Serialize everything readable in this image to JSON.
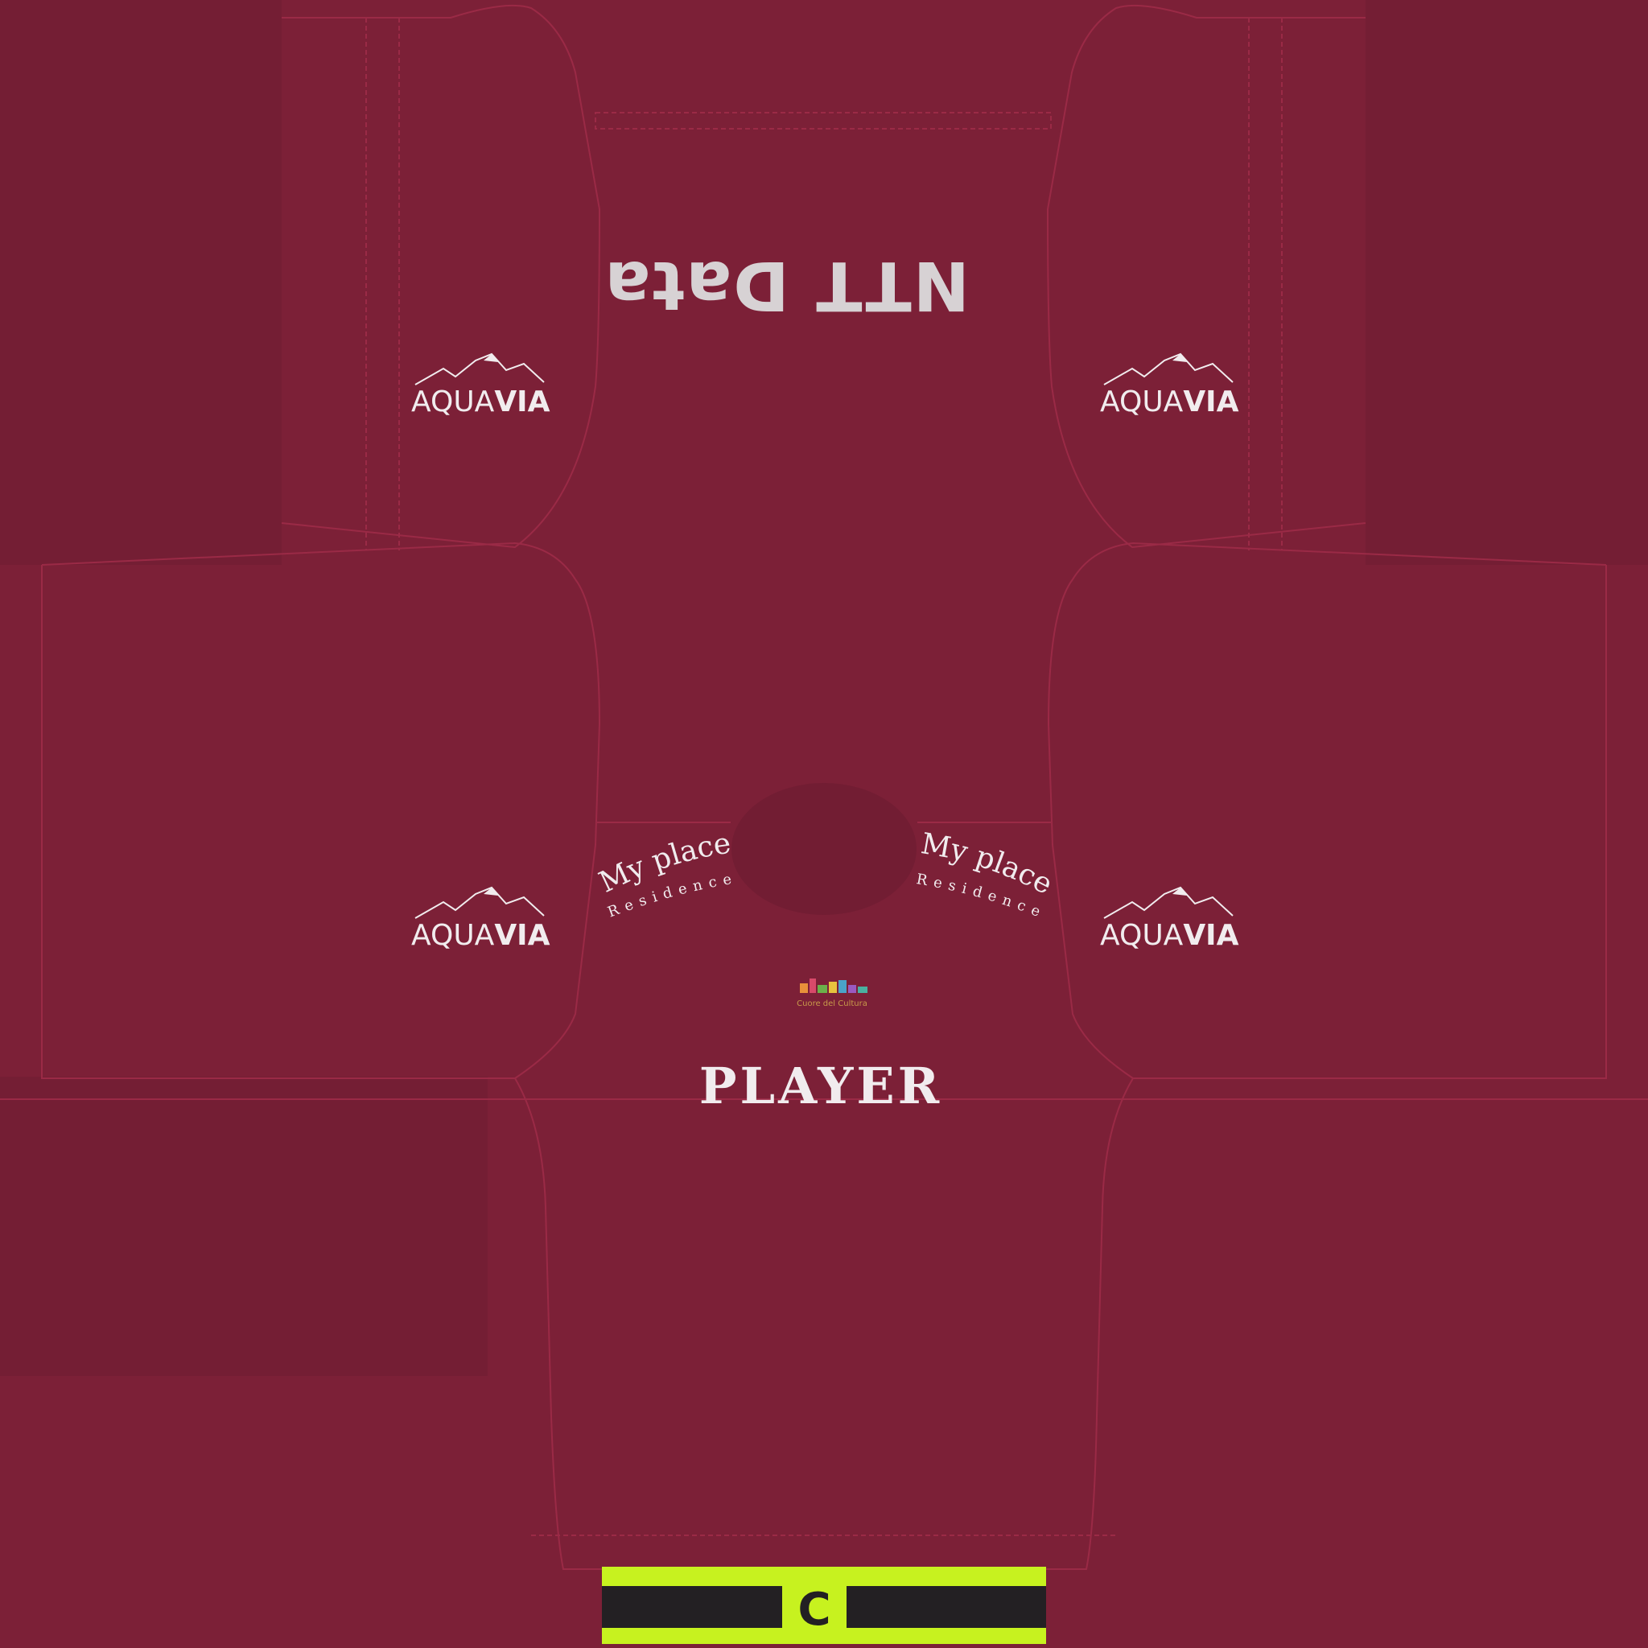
{
  "kit": {
    "sponsor": "NTT Data",
    "sleeve_sponsor": {
      "part1": "AQUA",
      "part2": "VIA"
    },
    "residence": {
      "line1": "My place",
      "line2": "Residence"
    },
    "small_logo": "Cuore del Cultura",
    "player_name": "PLAYER",
    "captain_letter": "C"
  },
  "colors": {
    "base": "#7c2037",
    "dark_panel": "#721d33",
    "seam": "#9a2a46",
    "text": "#f1ecee",
    "sponsor_text": "#d7d2d4",
    "armband_yellow": "#c7f21f",
    "armband_black": "#232023"
  }
}
